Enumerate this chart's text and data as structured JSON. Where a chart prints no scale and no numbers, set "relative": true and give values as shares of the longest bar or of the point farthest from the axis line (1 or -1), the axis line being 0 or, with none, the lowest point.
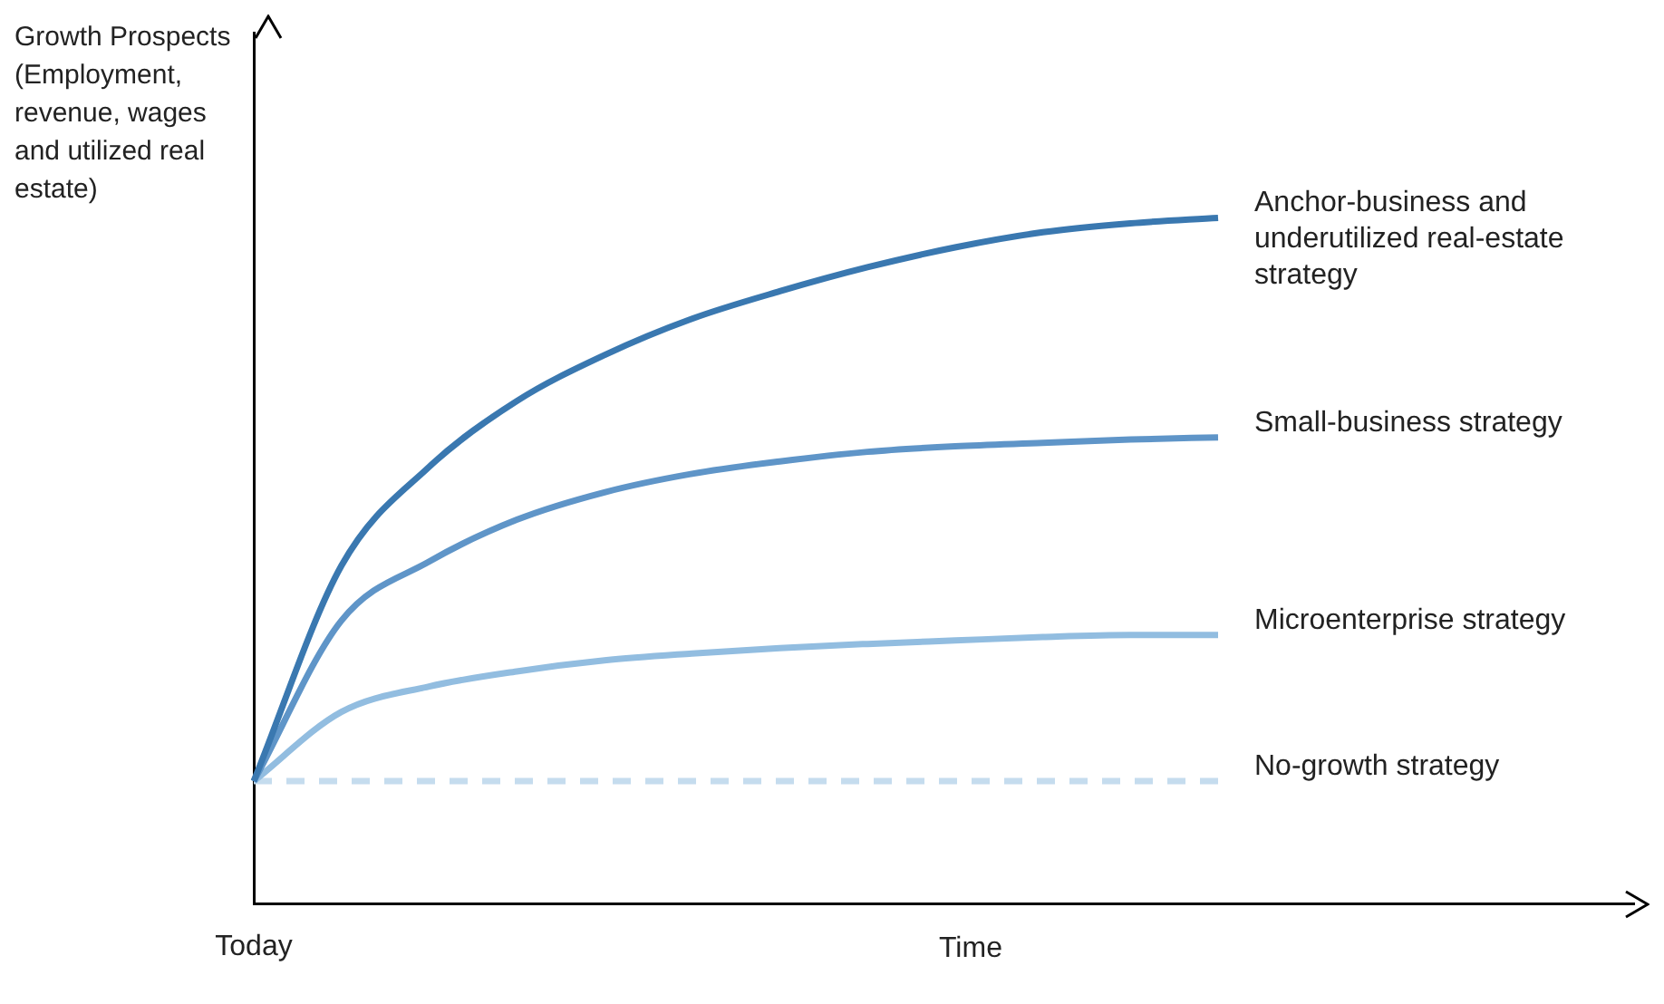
{
  "chart_data": {
    "type": "line",
    "relative": true,
    "xlabel": "Time",
    "ylabel": "Growth Prospects (Employment, revenue, wages and utilized real estate)",
    "annotations": [
      "Today"
    ],
    "categories": [
      null,
      null,
      null,
      null,
      null,
      null,
      null,
      null,
      null,
      null,
      null,
      null
    ],
    "legend": false,
    "grid": false,
    "marker": "none",
    "series": [
      {
        "name": "Anchor-business and underutilized real-estate strategy",
        "color": "#3a78b0",
        "values": [
          0.179,
          0.493,
          0.637,
          0.733,
          0.8,
          0.853,
          0.893,
          0.928,
          0.957,
          0.979,
          0.992,
          1
        ]
      },
      {
        "name": "Small-business strategy",
        "color": "#5f95c8",
        "values": [
          0.179,
          0.413,
          0.499,
          0.56,
          0.6,
          0.627,
          0.645,
          0.659,
          0.667,
          0.672,
          0.677,
          0.68
        ]
      },
      {
        "name": "Microenterprise strategy",
        "color": "#92bde0",
        "values": [
          0.179,
          0.28,
          0.317,
          0.339,
          0.355,
          0.365,
          0.373,
          0.379,
          0.384,
          0.389,
          0.392,
          0.392
        ]
      },
      {
        "name": "No-growth strategy",
        "color": "#c5dcee",
        "line_style": "dashed",
        "values": [
          0.179,
          0.179,
          0.179,
          0.179,
          0.179,
          0.179,
          0.179,
          0.179,
          0.179,
          0.179,
          0.179,
          0.179
        ]
      }
    ]
  }
}
